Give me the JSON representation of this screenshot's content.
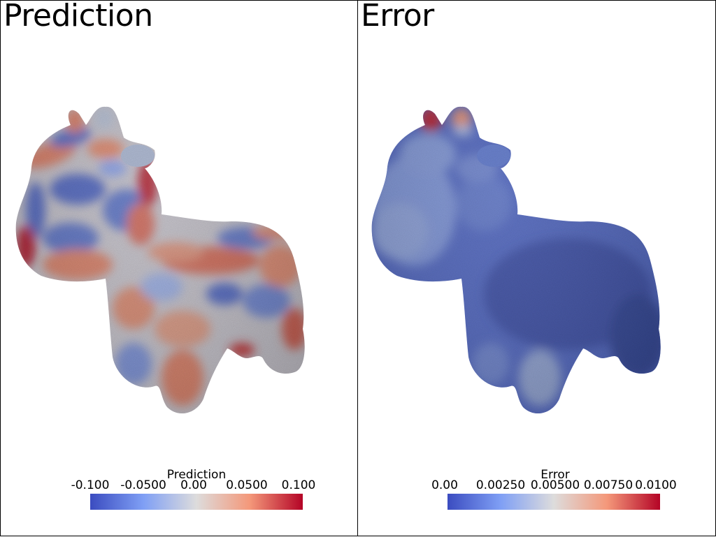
{
  "panels": [
    {
      "title": "Prediction",
      "colorbar": {
        "title": "Prediction",
        "ticks": [
          "-0.100",
          "-0.0500",
          "0.00",
          "0.0500",
          "0.100"
        ],
        "colormap": "coolwarm",
        "range": [
          -0.1,
          0.1
        ]
      }
    },
    {
      "title": "Error",
      "colorbar": {
        "title": "Error",
        "ticks": [
          "0.00",
          "0.00250",
          "0.00500",
          "0.00750",
          "0.0100"
        ],
        "colormap": "coolwarm",
        "range": [
          0.0,
          0.01
        ]
      }
    }
  ],
  "colors": {
    "cool": "#3b4cc0",
    "mid": "#dddddd",
    "warm": "#b40426"
  }
}
